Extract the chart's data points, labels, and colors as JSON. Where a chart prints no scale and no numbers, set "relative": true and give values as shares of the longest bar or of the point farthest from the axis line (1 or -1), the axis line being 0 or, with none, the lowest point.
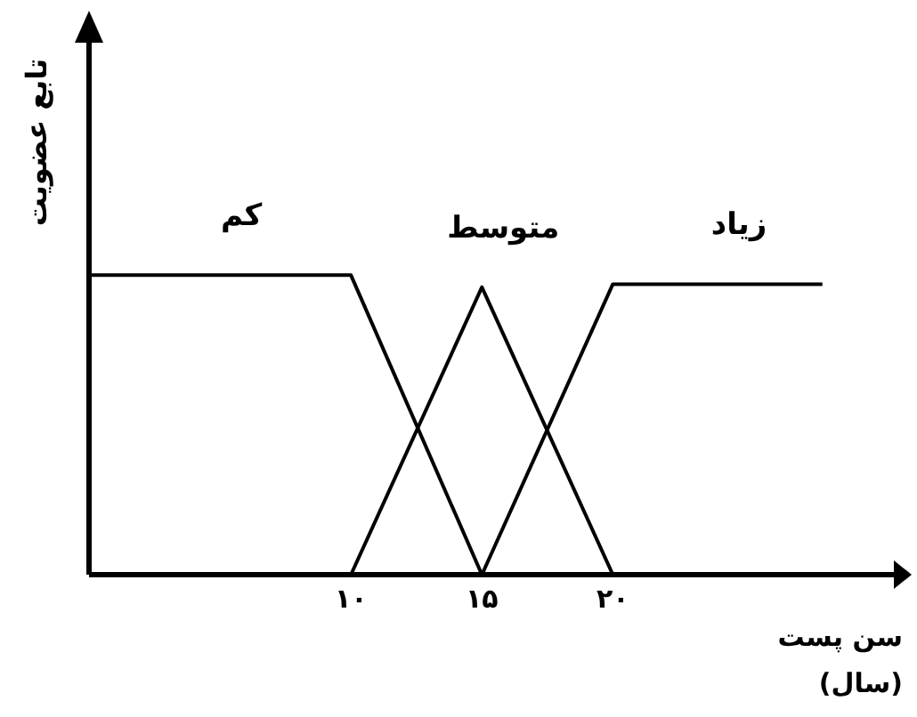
{
  "chart_data": {
    "type": "line",
    "relative": true,
    "ylabel": "تابع عضویت",
    "xlabel": "سن پست\n(سال)",
    "xlim": [
      0,
      31
    ],
    "xticks": [
      {
        "value": 10,
        "label": "۱۰"
      },
      {
        "value": 15,
        "label": "۱۵"
      },
      {
        "value": 20,
        "label": "۲۰"
      }
    ],
    "series": [
      {
        "name": "کم",
        "color": "#000000",
        "x": [
          0,
          10,
          15
        ],
        "values": [
          1,
          1,
          0
        ]
      },
      {
        "name": "متوسط",
        "color": "#000000",
        "x": [
          10,
          15,
          20
        ],
        "values": [
          0,
          0.96,
          0
        ]
      },
      {
        "name": "زیاد",
        "color": "#000000",
        "x": [
          15,
          20,
          28
        ],
        "values": [
          0,
          0.97,
          0.97
        ]
      }
    ]
  }
}
